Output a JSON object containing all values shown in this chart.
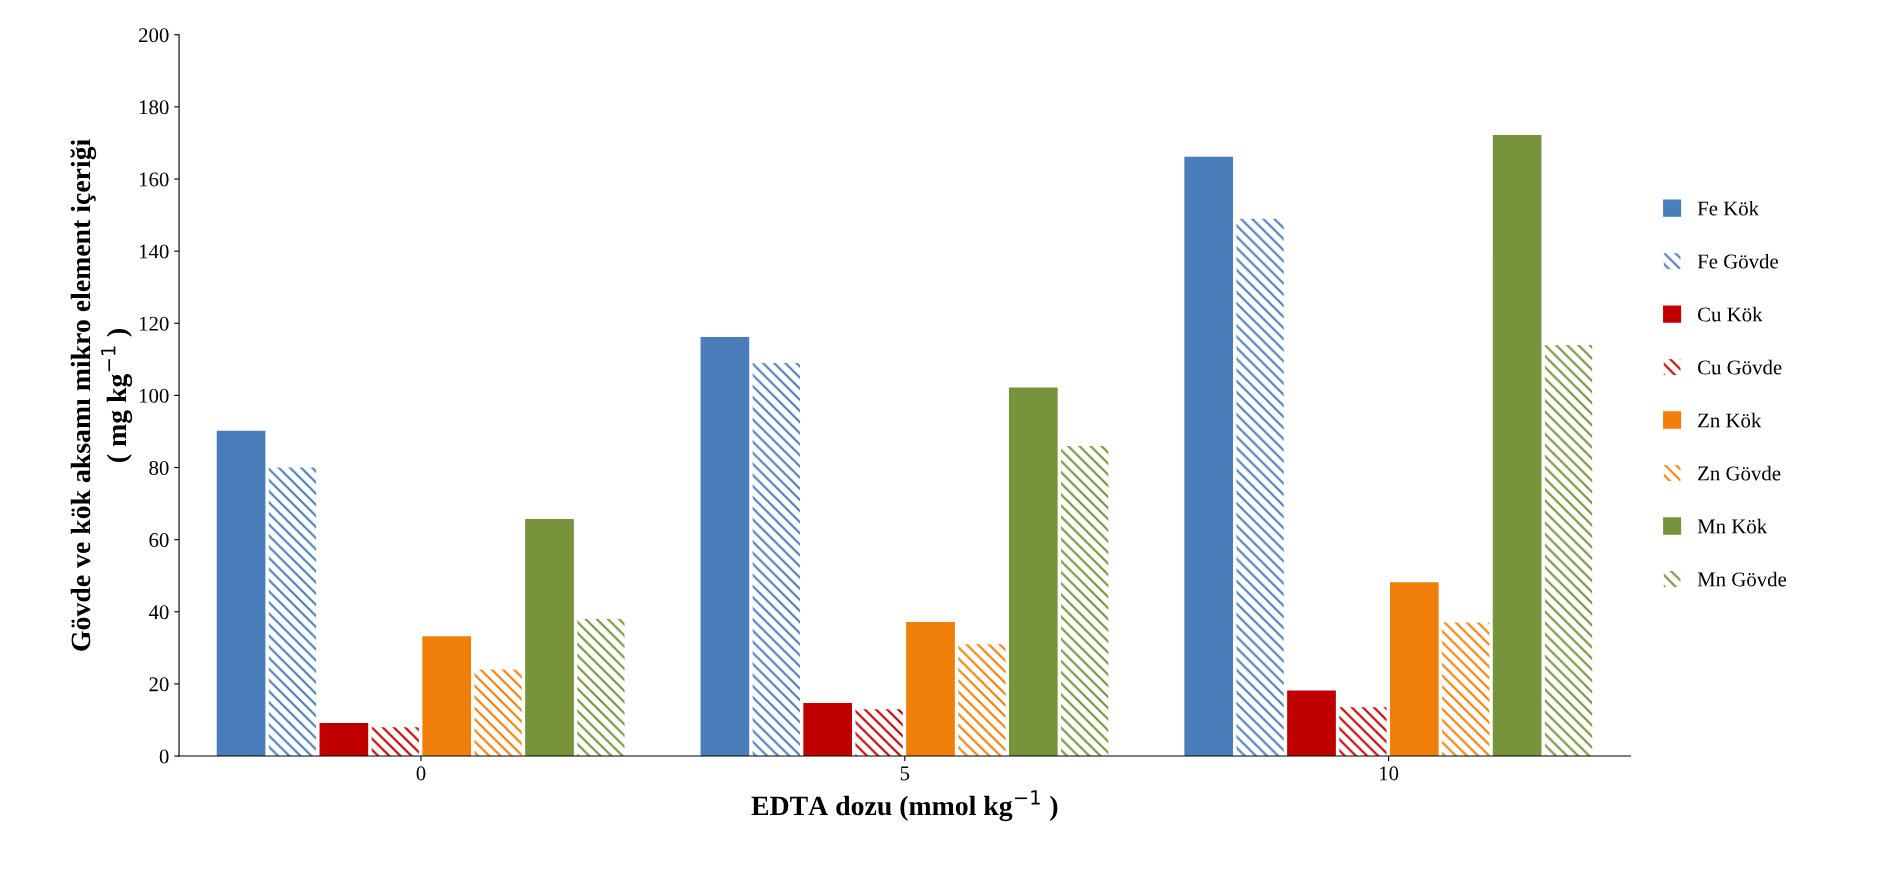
{
  "chart_data": {
    "type": "bar",
    "xlabel": "EDTA dozu (mmol kg$^{−1}$ )",
    "ylabel": "Gövde ve kök aksamı mikro element içeriği\n( mg kg$^{−1}$ )",
    "categories": [
      "0",
      "5",
      "10"
    ],
    "series": [
      {
        "name": "Fe Kök",
        "color": "#4a7ebb",
        "values": [
          90,
          116,
          166
        ]
      },
      {
        "name": "Fe Gövde",
        "color": "#4a7ebb",
        "values": [
          80,
          109,
          149
        ]
      },
      {
        "name": "Cu Kök",
        "color": "#c00000",
        "values": [
          9,
          14.5,
          18
        ]
      },
      {
        "name": "Cu Gövde",
        "color": "#c00000",
        "values": [
          8,
          13,
          13.5
        ]
      },
      {
        "name": "Zn Kök",
        "color": "#f07f09",
        "values": [
          33,
          37,
          48
        ]
      },
      {
        "name": "Zn Gövde",
        "color": "#f07f09",
        "values": [
          24,
          31,
          37
        ]
      },
      {
        "name": "Mn Kök",
        "color": "#77933c",
        "values": [
          65.5,
          102,
          172
        ]
      },
      {
        "name": "Mn Gövde",
        "color": "#77933c",
        "values": [
          38,
          86,
          114
        ]
      }
    ],
    "ylim": [
      0,
      200
    ],
    "yticks": [
      0,
      20,
      40,
      60,
      80,
      100,
      120,
      140,
      160,
      180,
      200
    ],
    "grid": false,
    "legend": "right"
  }
}
